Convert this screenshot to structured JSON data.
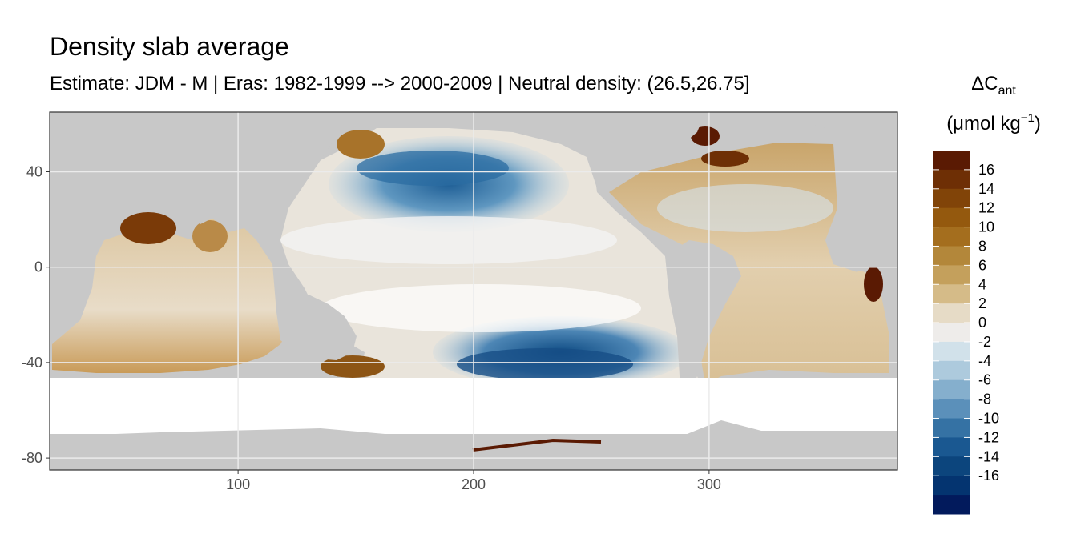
{
  "title": "Density slab average",
  "subtitle": "Estimate: JDM - M | Eras: 1982-1999 --> 2000-2009 | Neutral density: (26.5,26.75]",
  "legend": {
    "title_symbol": "ΔC",
    "title_subscript": "ant",
    "unit_prefix": "(μmol kg",
    "unit_exponent": "−1",
    "unit_suffix": ")",
    "labels": [
      "16",
      "14",
      "12",
      "10",
      "8",
      "6",
      "4",
      "2",
      "0",
      "-2",
      "-4",
      "-6",
      "-8",
      "-10",
      "-12",
      "-14",
      "-16"
    ],
    "colors": [
      "#5a1a03",
      "#6e2f05",
      "#814408",
      "#94590e",
      "#a46e1e",
      "#b3873a",
      "#c4a05c",
      "#d5bb88",
      "#e6dbc6",
      "#eeecea",
      "#d1e1ea",
      "#adcadd",
      "#85afcd",
      "#5b90ba",
      "#3572a4",
      "#1a5891",
      "#0c457d",
      "#043470",
      "#021a5c"
    ]
  },
  "axes": {
    "x_ticks": [
      100,
      200,
      300
    ],
    "y_ticks": [
      40,
      0,
      -40,
      -80
    ],
    "xlim": [
      20,
      380
    ],
    "ylim": [
      -85,
      65
    ]
  },
  "colors": {
    "land": "#c8c8c8",
    "nodata": "#ffffff",
    "panel_border": "#333333",
    "grid": "#ebebeb"
  }
}
